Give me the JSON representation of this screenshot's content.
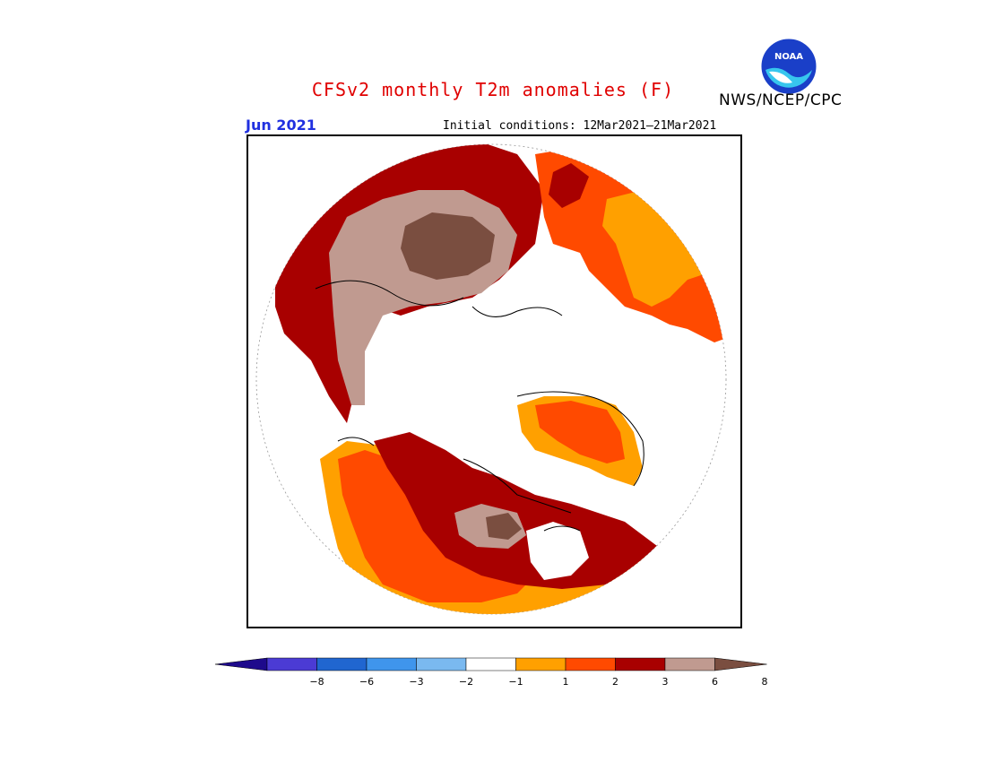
{
  "header": {
    "title": "CFSv2 monthly T2m anomalies (F)",
    "agency": "NWS/NCEP/CPC",
    "logo_text": "NOAA",
    "month": "Jun 2021",
    "initial_conditions": "Initial conditions: 12Mar2021–21Mar2021"
  },
  "colorbar": {
    "colors": [
      "#1e0a8c",
      "#4b3bd4",
      "#2066d0",
      "#3f95ec",
      "#7ab9f0",
      "#ffffff",
      "#ffa000",
      "#ff4a00",
      "#a80000",
      "#c09a90",
      "#7a4e40"
    ],
    "ticks": [
      "−8",
      "−6",
      "−3",
      "−2",
      "−1",
      "1",
      "2",
      "3",
      "6",
      "8"
    ]
  },
  "map": {
    "projection": "north-polar-stereographic",
    "variable": "2m temperature anomaly",
    "units": "F"
  }
}
